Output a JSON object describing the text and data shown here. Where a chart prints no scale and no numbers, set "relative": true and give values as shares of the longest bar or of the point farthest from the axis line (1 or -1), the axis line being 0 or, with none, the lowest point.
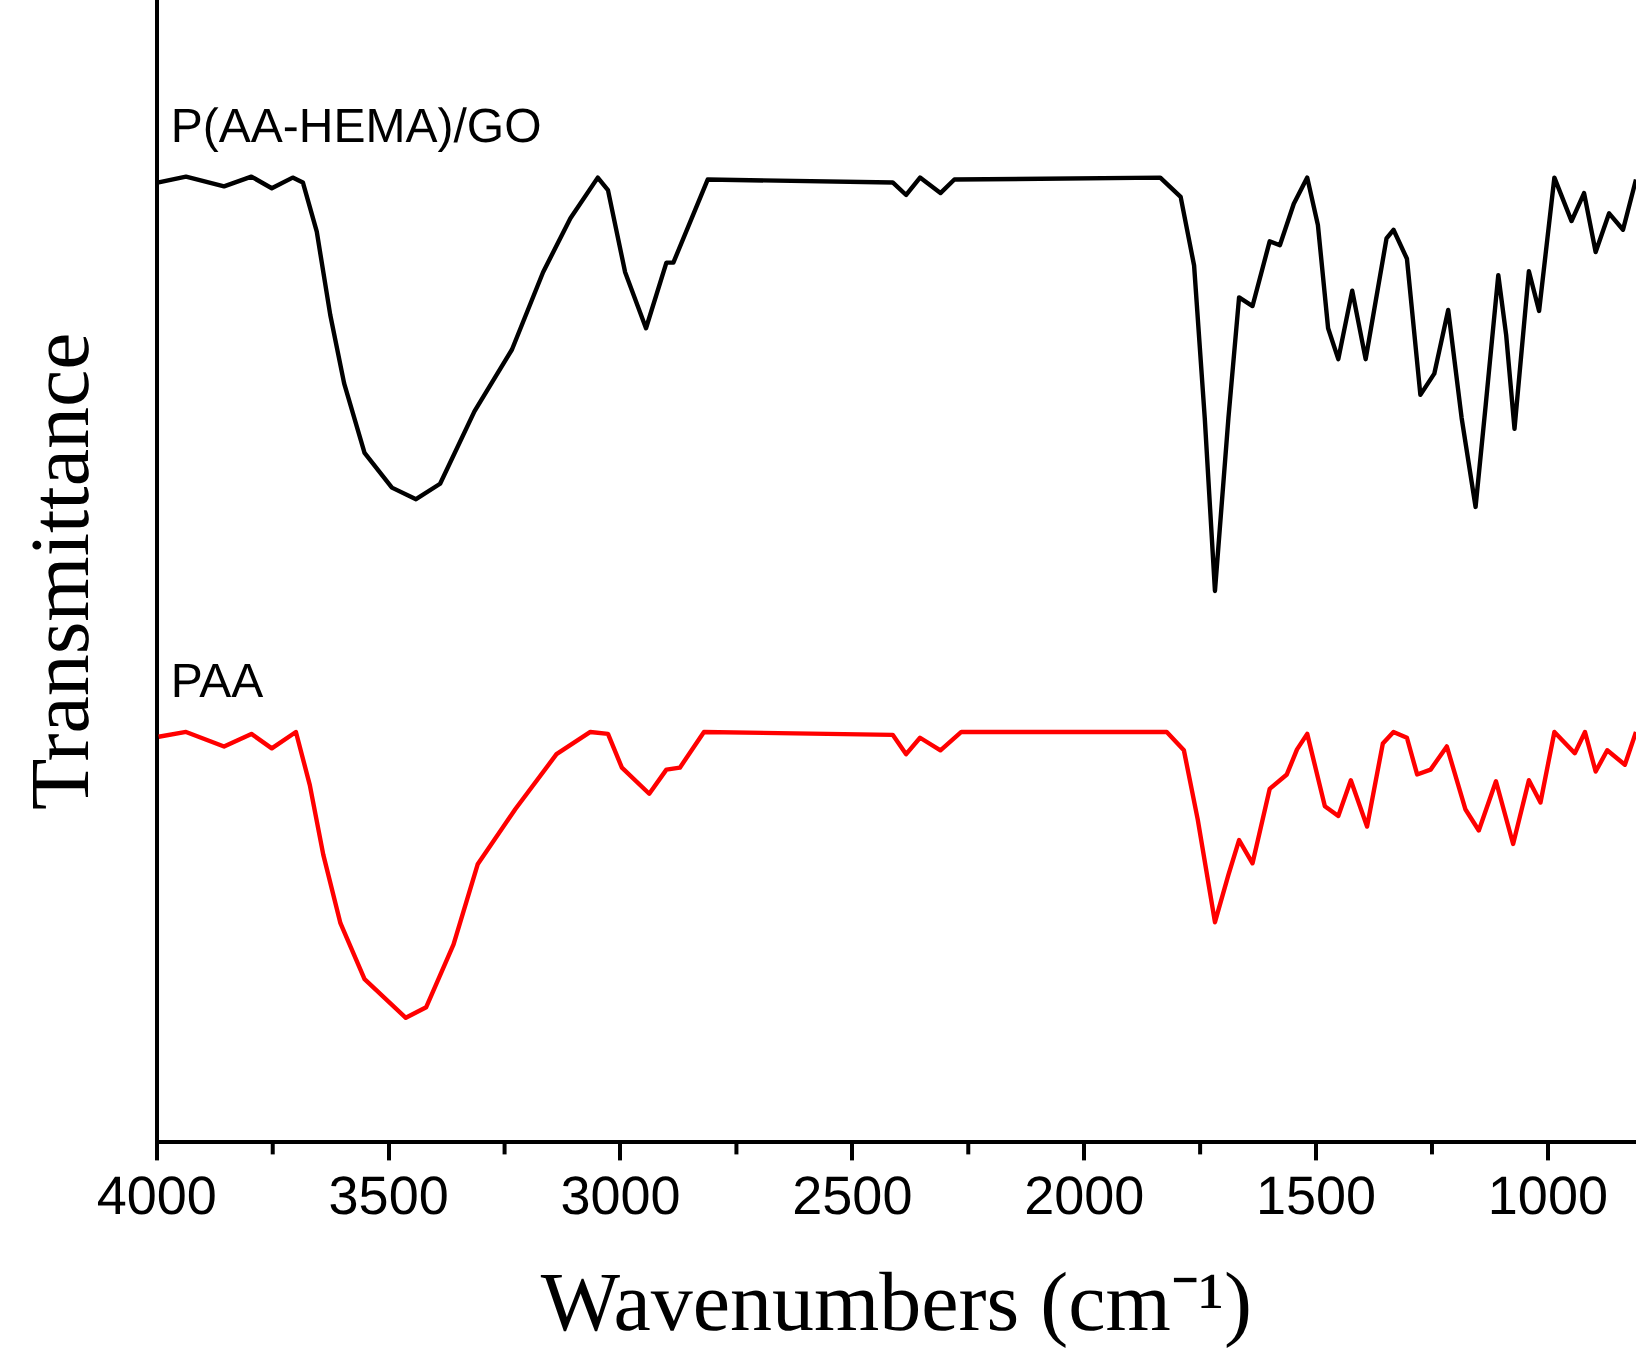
{
  "chart_data": {
    "type": "line",
    "relative": true,
    "xlabel": "Wavenumbers (cm⁻¹)",
    "ylabel": "Transmittance",
    "xlim": [
      4000,
      810
    ],
    "xticks": [
      4000,
      {
        "value": 3750,
        "label": null
      },
      3500,
      {
        "value": 3250,
        "label": null
      },
      3000,
      {
        "value": 2750,
        "label": null
      },
      2500,
      {
        "value": 2250,
        "label": null
      },
      2000,
      {
        "value": 1750,
        "label": null
      },
      1500,
      {
        "value": 1250,
        "label": null
      },
      1000
    ],
    "grid": false,
    "legend": false,
    "marker": "none",
    "line_style": "solid",
    "series": [
      {
        "name": "P(AA-HEMA)/GO",
        "color": "#000000",
        "x": [
          3996,
          3937,
          3855,
          3796,
          3752,
          3707,
          3685,
          3655,
          3626,
          3596,
          3552,
          3493,
          3441,
          3389,
          3315,
          3234,
          3167,
          3108,
          3049,
          3027,
          2990,
          2945,
          2901,
          2886,
          2812,
          2413,
          2384,
          2354,
          2310,
          2280,
          1836,
          1792,
          1763,
          1740,
          1718,
          1689,
          1666,
          1637,
          1600,
          1578,
          1548,
          1519,
          1496,
          1474,
          1452,
          1422,
          1393,
          1348,
          1333,
          1304,
          1275,
          1245,
          1215,
          1186,
          1156,
          1134,
          1107,
          1090,
          1072,
          1041,
          1019,
          986,
          949,
          922,
          897,
          868,
          838,
          810
        ],
        "values": [
          0.994,
          1.0,
          0.99,
          1.0,
          0.988,
          0.999,
          0.994,
          0.943,
          0.857,
          0.786,
          0.714,
          0.678,
          0.666,
          0.682,
          0.757,
          0.821,
          0.901,
          0.957,
          0.999,
          0.986,
          0.901,
          0.843,
          0.911,
          0.911,
          0.997,
          0.994,
          0.981,
          0.999,
          0.983,
          0.997,
          0.999,
          0.979,
          0.908,
          0.75,
          0.571,
          0.75,
          0.875,
          0.866,
          0.933,
          0.929,
          0.972,
          0.999,
          0.95,
          0.843,
          0.811,
          0.882,
          0.811,
          0.936,
          0.945,
          0.915,
          0.774,
          0.796,
          0.862,
          0.75,
          0.658,
          0.764,
          0.898,
          0.836,
          0.739,
          0.902,
          0.861,
          0.999,
          0.954,
          0.983,
          0.922,
          0.962,
          0.945,
          0.997
        ]
      },
      {
        "name": "PAA",
        "color": "#ff0000",
        "x": [
          3996,
          3937,
          3855,
          3796,
          3752,
          3700,
          3670,
          3641,
          3604,
          3552,
          3463,
          3419,
          3360,
          3308,
          3227,
          3138,
          3065,
          3027,
          2997,
          2938,
          2901,
          2872,
          2820,
          2413,
          2384,
          2354,
          2310,
          2265,
          1822,
          1785,
          1755,
          1718,
          1689,
          1666,
          1637,
          1600,
          1563,
          1541,
          1519,
          1481,
          1452,
          1425,
          1390,
          1356,
          1333,
          1304,
          1282,
          1253,
          1218,
          1178,
          1149,
          1112,
          1075,
          1041,
          1016,
          986,
          942,
          920,
          897,
          872,
          834,
          810
        ],
        "values": [
          0.42,
          0.425,
          0.41,
          0.423,
          0.408,
          0.425,
          0.37,
          0.298,
          0.227,
          0.169,
          0.129,
          0.14,
          0.205,
          0.288,
          0.345,
          0.402,
          0.425,
          0.423,
          0.388,
          0.361,
          0.386,
          0.388,
          0.425,
          0.422,
          0.402,
          0.419,
          0.406,
          0.425,
          0.425,
          0.406,
          0.334,
          0.228,
          0.277,
          0.313,
          0.289,
          0.366,
          0.381,
          0.407,
          0.423,
          0.348,
          0.338,
          0.375,
          0.327,
          0.413,
          0.425,
          0.419,
          0.381,
          0.386,
          0.41,
          0.345,
          0.323,
          0.374,
          0.309,
          0.375,
          0.352,
          0.425,
          0.403,
          0.425,
          0.384,
          0.406,
          0.391,
          0.425
        ]
      }
    ]
  }
}
